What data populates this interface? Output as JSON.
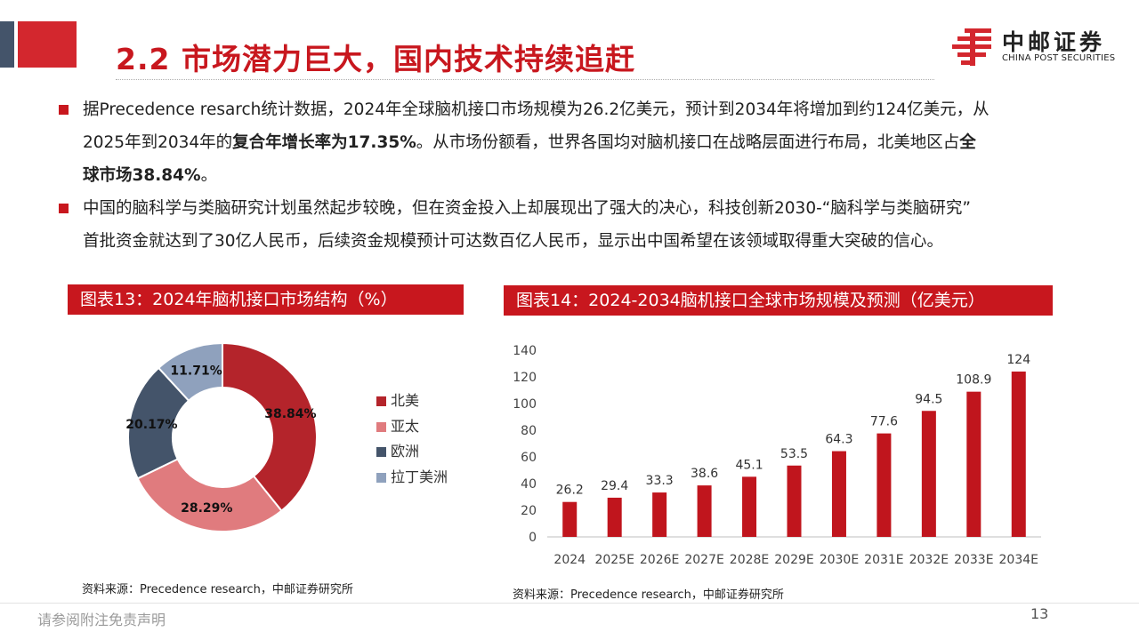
{
  "header": {
    "title": "2.2 市场潜力巨大，国内技术持续追赶",
    "logo_cn": "中邮证券",
    "logo_en": "CHINA POST SECURITIES"
  },
  "bullets": [
    {
      "line1": "据Precedence resarch统计数据，2024年全球脑机接口市场规模为26.2亿美元，预计到2034年将增加到约124亿美元，从",
      "line2a": "2025年到2034年的",
      "line2b": "复合年增长率为17.35%",
      "line2c": "。从市场份额看，世界各国均对脑机接口在战略层面进行布局，北美地区占",
      "line2d": "全",
      "line3": "球市场38.84%",
      "line3b": "。"
    },
    {
      "line1": "中国的脑科学与类脑研究计划虽然起步较晚，但在资金投入上却展现出了强大的决心，科技创新2030-“脑科学与类脑研究”",
      "line2": "首批资金就达到了30亿人民币，后续资金规模预计可达数百亿人民币，显示出中国希望在该领域取得重大突破的信心。"
    }
  ],
  "figure13": {
    "heading": "图表13：2024年脑机接口市场结构（%）",
    "source": "资料来源：Precedence research，中邮证券研究所"
  },
  "figure14": {
    "heading": "图表14：2024-2034脑机接口全球市场规模及预测（亿美元）",
    "source": "资料来源：Precedence research，中邮证券研究所"
  },
  "chart_data": [
    {
      "type": "pie",
      "title": "",
      "categories": [
        "北美",
        "亚太",
        "欧洲",
        "拉丁美洲"
      ],
      "values": [
        38.84,
        28.29,
        20.17,
        11.71
      ],
      "value_labels": [
        "38.84%",
        "28.29%",
        "20.17%",
        "11.71%"
      ],
      "colors": [
        "#b4242b",
        "#e07b7e",
        "#44546a",
        "#8fa1bd"
      ],
      "legend": "right",
      "donut": true
    },
    {
      "type": "bar",
      "title": "",
      "categories": [
        "2024",
        "2025E",
        "2026E",
        "2027E",
        "2028E",
        "2029E",
        "2030E",
        "2031E",
        "2032E",
        "2033E",
        "2034E"
      ],
      "values": [
        26.2,
        29.4,
        33.3,
        38.6,
        45.1,
        53.5,
        64.3,
        77.6,
        94.5,
        108.9,
        124
      ],
      "ylim": [
        0,
        140
      ],
      "yticks": [
        0,
        20,
        40,
        60,
        80,
        100,
        120,
        140
      ],
      "xlabel": "",
      "ylabel": "",
      "color": "#c0151d",
      "grid": false
    }
  ],
  "footer": {
    "disclaimer": "请参阅附注免责声明",
    "page": "13"
  }
}
